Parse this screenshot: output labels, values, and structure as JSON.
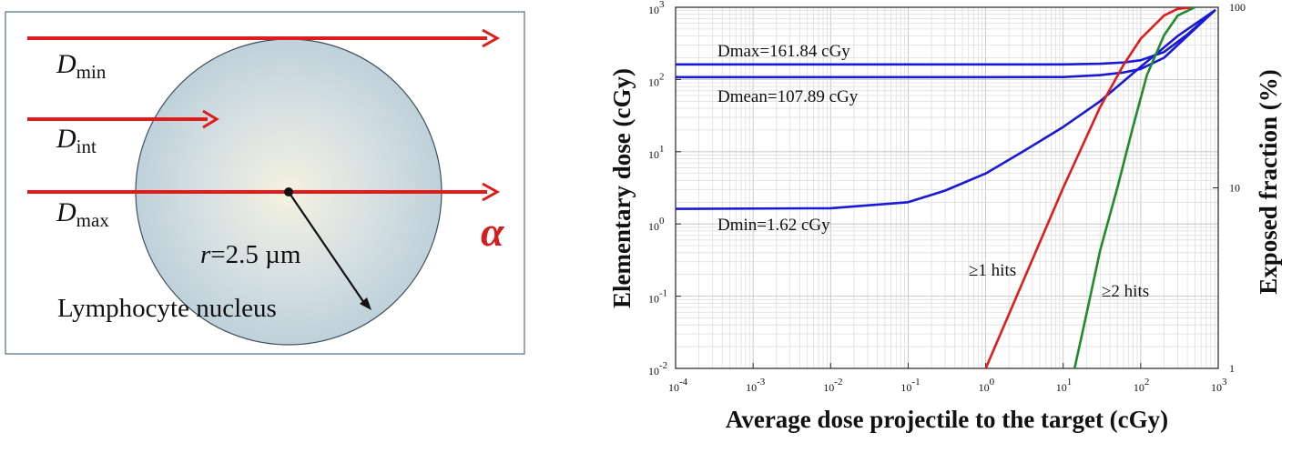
{
  "diagram": {
    "beam_labels": [
      {
        "main": "D",
        "sub": "min"
      },
      {
        "main": "D",
        "sub": "int"
      },
      {
        "main": "D",
        "sub": "max"
      }
    ],
    "radius_label": {
      "italic": "r",
      "rest": "=2.5 µm"
    },
    "nucleus_label": "Lymphocyte nucleus",
    "particle_label": "α",
    "colors": {
      "beam": "#e01b1b",
      "nucleus_edge": "#3f4f5a",
      "nucleus_center": "#f4f2e0",
      "nucleus_outer": "#b9cdd7",
      "frame": "#5a7890"
    }
  },
  "chart_data": {
    "type": "line",
    "xlabel": "Average dose projectile to the target (cGy)",
    "ylabel": "Elementary dose (cGy)",
    "y2label": "Exposed fraction (%)",
    "x_scale": "log",
    "y_scale": "log",
    "y2_scale": "log",
    "xlim": [
      0.0001,
      1000
    ],
    "ylim": [
      0.01,
      1000
    ],
    "y2lim": [
      1,
      100
    ],
    "x_ticks": [
      {
        "base": "10",
        "exp": "-4"
      },
      {
        "base": "10",
        "exp": "-3"
      },
      {
        "base": "10",
        "exp": "-2"
      },
      {
        "base": "10",
        "exp": "-1"
      },
      {
        "base": "10",
        "exp": "0"
      },
      {
        "base": "10",
        "exp": "1"
      },
      {
        "base": "10",
        "exp": "2"
      },
      {
        "base": "10",
        "exp": "3"
      }
    ],
    "y_ticks": [
      {
        "base": "10",
        "exp": "-2"
      },
      {
        "base": "10",
        "exp": "-1"
      },
      {
        "base": "10",
        "exp": "0"
      },
      {
        "base": "10",
        "exp": "1"
      },
      {
        "base": "10",
        "exp": "2"
      },
      {
        "base": "10",
        "exp": "3"
      }
    ],
    "y2_ticks": [
      "1",
      "10",
      "100"
    ],
    "grid": true,
    "series": [
      {
        "label": "Dmax=161.84 cGy",
        "axis": "left",
        "color": "#1a1ad6",
        "x": [
          0.0001,
          1,
          10,
          30,
          60,
          100,
          200,
          400,
          900
        ],
        "y": [
          161.84,
          161.84,
          162,
          165,
          172,
          185,
          240,
          420,
          900
        ]
      },
      {
        "label": "Dmean=107.89 cGy",
        "axis": "left",
        "color": "#1a1ad6",
        "x": [
          0.0001,
          1,
          10,
          30,
          60,
          100,
          200,
          400,
          900
        ],
        "y": [
          107.89,
          107.89,
          108,
          115,
          125,
          140,
          200,
          400,
          900
        ]
      },
      {
        "label": "Dmin=1.62 cGy",
        "axis": "left",
        "color": "#1a1ad6",
        "x": [
          0.0001,
          0.01,
          0.1,
          0.3,
          1,
          3,
          10,
          30,
          100,
          300,
          900
        ],
        "y": [
          1.62,
          1.65,
          2.0,
          2.9,
          5.0,
          10,
          22,
          50,
          150,
          400,
          900
        ]
      },
      {
        "label": "≥1 hits",
        "axis": "right",
        "color": "#e01b1b",
        "x": [
          1,
          3,
          10,
          30,
          60,
          100,
          200,
          300,
          500
        ],
        "y": [
          1,
          3,
          10,
          28,
          48,
          67,
          90,
          98,
          100
        ]
      },
      {
        "label": "≥2 hits",
        "axis": "right",
        "color": "#1e8c2a",
        "x": [
          14,
          20,
          30,
          50,
          80,
          120,
          200,
          300,
          500
        ],
        "y": [
          1,
          2,
          4.5,
          10,
          22,
          42,
          70,
          90,
          100
        ]
      }
    ]
  }
}
